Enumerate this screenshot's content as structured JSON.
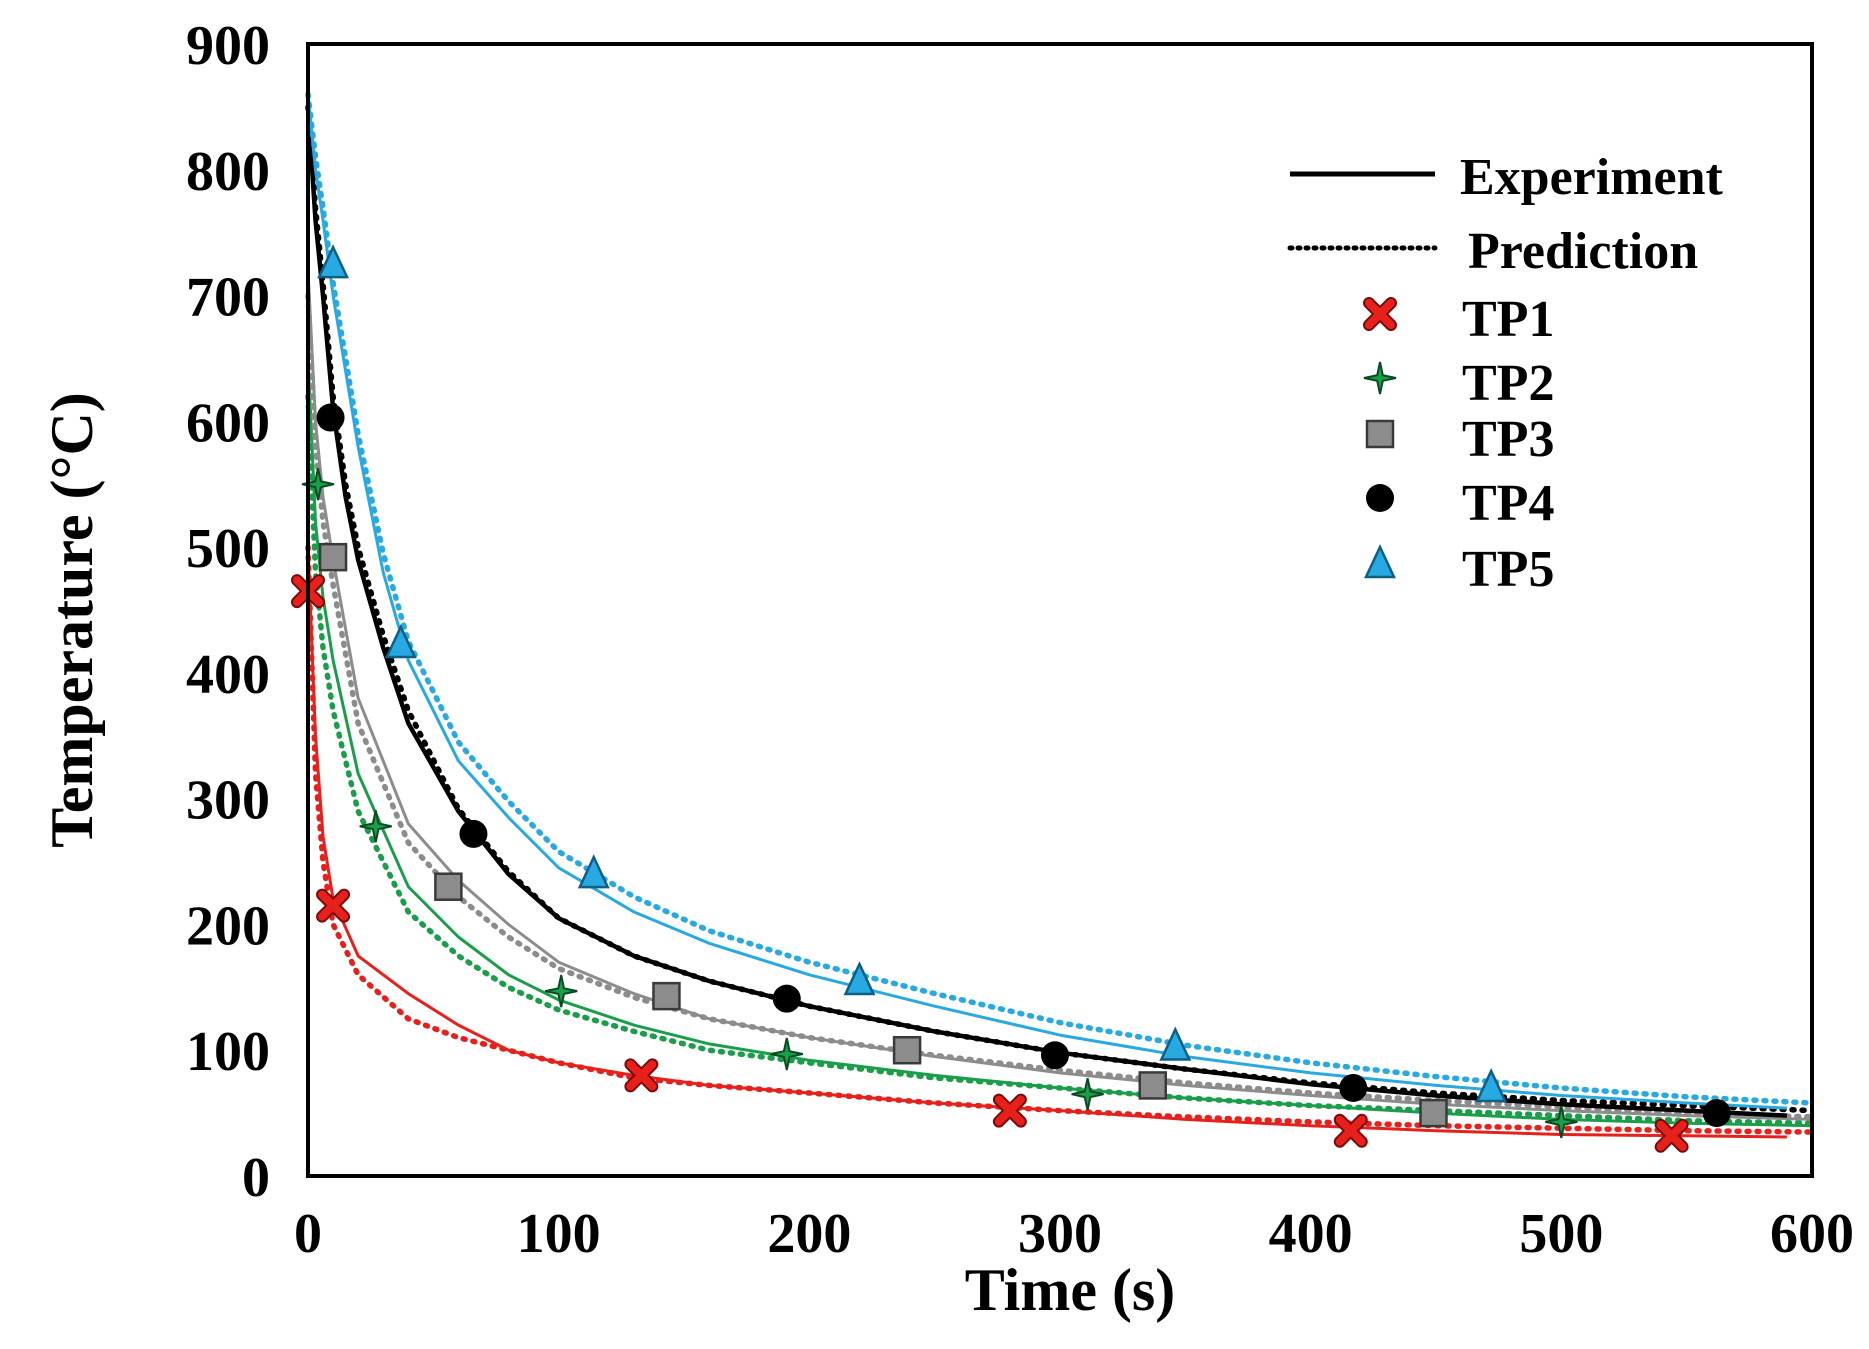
{
  "chart_data": {
    "type": "line",
    "title": "",
    "xlabel": "Time (s)",
    "ylabel": "Temperature (°C)",
    "xlim": [
      0,
      600
    ],
    "ylim": [
      0,
      900
    ],
    "xticks": [
      0,
      100,
      200,
      300,
      400,
      500,
      600
    ],
    "yticks": [
      0,
      100,
      200,
      300,
      400,
      500,
      600,
      700,
      800,
      900
    ],
    "xtick_labels": [
      "0",
      "100",
      "200",
      "300",
      "400",
      "500",
      "600"
    ],
    "ytick_labels": [
      "0",
      "100",
      "200",
      "300",
      "400",
      "500",
      "600",
      "700",
      "800",
      "900"
    ],
    "grid": false,
    "legend_position": "top-right",
    "legend": [
      {
        "label": "Experiment",
        "kind": "line",
        "style": "solid",
        "color": "#000000"
      },
      {
        "label": "Prediction",
        "kind": "line",
        "style": "dotted",
        "color": "#000000"
      },
      {
        "label": "TP1",
        "kind": "marker",
        "marker": "x",
        "color": "#e8201c"
      },
      {
        "label": "TP2",
        "kind": "marker",
        "marker": "star",
        "color": "#1a9e4a"
      },
      {
        "label": "TP3",
        "kind": "marker",
        "marker": "square",
        "color": "#8c8c8c"
      },
      {
        "label": "TP4",
        "kind": "marker",
        "marker": "circle",
        "color": "#000000"
      },
      {
        "label": "TP5",
        "kind": "marker",
        "marker": "triangle",
        "color": "#29a9e1"
      }
    ],
    "series": [
      {
        "name": "TP1",
        "color": "#e8201c",
        "marker": "x",
        "experiment": {
          "x": [
            0,
            3,
            6,
            10,
            20,
            40,
            60,
            80,
            100,
            130,
            160,
            200,
            250,
            300,
            350,
            400,
            450,
            500,
            550,
            590
          ],
          "y": [
            500,
            350,
            270,
            220,
            175,
            145,
            120,
            100,
            90,
            80,
            72,
            66,
            58,
            52,
            45,
            40,
            36,
            33,
            32,
            31
          ]
        },
        "prediction": {
          "x": [
            0,
            3,
            6,
            10,
            20,
            40,
            60,
            80,
            100,
            130,
            160,
            200,
            250,
            300,
            350,
            400,
            450,
            500,
            550,
            600
          ],
          "y": [
            500,
            320,
            250,
            200,
            160,
            125,
            110,
            100,
            90,
            78,
            72,
            66,
            58,
            52,
            47,
            43,
            40,
            38,
            36,
            35
          ]
        },
        "markers": {
          "x": [
            0,
            10,
            133,
            280,
            416,
            544
          ],
          "y": [
            465,
            215,
            80,
            52,
            36,
            32
          ]
        }
      },
      {
        "name": "TP2",
        "color": "#1a9e4a",
        "marker": "star",
        "experiment": {
          "x": [
            0,
            3,
            6,
            10,
            20,
            40,
            60,
            80,
            100,
            130,
            160,
            200,
            250,
            300,
            350,
            400,
            450,
            500,
            550,
            600
          ],
          "y": [
            650,
            520,
            460,
            410,
            320,
            230,
            190,
            160,
            140,
            120,
            105,
            92,
            80,
            70,
            62,
            56,
            50,
            45,
            42,
            40
          ]
        },
        "prediction": {
          "x": [
            0,
            3,
            6,
            10,
            20,
            40,
            60,
            80,
            100,
            130,
            160,
            200,
            250,
            300,
            350,
            400,
            450,
            500,
            550,
            600
          ],
          "y": [
            620,
            480,
            420,
            370,
            290,
            210,
            175,
            150,
            132,
            115,
            100,
            90,
            78,
            70,
            62,
            56,
            52,
            48,
            44,
            42
          ]
        },
        "markers": {
          "x": [
            4,
            27,
            101,
            191,
            311,
            500
          ],
          "y": [
            550,
            278,
            147,
            97,
            65,
            43
          ]
        }
      },
      {
        "name": "TP3",
        "color": "#8c8c8c",
        "marker": "square",
        "experiment": {
          "x": [
            0,
            3,
            6,
            10,
            20,
            40,
            60,
            80,
            100,
            130,
            160,
            200,
            250,
            300,
            350,
            400,
            450,
            500,
            550,
            600
          ],
          "y": [
            720,
            600,
            540,
            490,
            380,
            280,
            235,
            200,
            170,
            145,
            125,
            110,
            95,
            82,
            72,
            64,
            57,
            52,
            48,
            45
          ]
        },
        "prediction": {
          "x": [
            0,
            3,
            6,
            10,
            20,
            40,
            60,
            80,
            100,
            130,
            160,
            200,
            250,
            300,
            350,
            400,
            450,
            500,
            550,
            600
          ],
          "y": [
            700,
            580,
            520,
            470,
            360,
            265,
            222,
            190,
            165,
            142,
            125,
            110,
            96,
            84,
            74,
            66,
            60,
            55,
            50,
            47
          ]
        },
        "markers": {
          "x": [
            10,
            56,
            143,
            239,
            337,
            449
          ],
          "y": [
            492,
            230,
            143,
            100,
            72,
            50
          ]
        }
      },
      {
        "name": "TP4",
        "color": "#000000",
        "marker": "circle",
        "experiment": {
          "x": [
            0,
            3,
            6,
            10,
            15,
            20,
            30,
            40,
            60,
            80,
            100,
            130,
            160,
            200,
            250,
            300,
            350,
            400,
            450,
            500,
            550,
            590
          ],
          "y": [
            850,
            760,
            700,
            610,
            540,
            490,
            420,
            360,
            290,
            240,
            205,
            175,
            155,
            135,
            115,
            98,
            85,
            73,
            64,
            57,
            52,
            48
          ]
        },
        "prediction": {
          "x": [
            0,
            3,
            6,
            10,
            15,
            20,
            30,
            40,
            60,
            80,
            100,
            130,
            160,
            200,
            250,
            300,
            350,
            400,
            450,
            500,
            550,
            600
          ],
          "y": [
            850,
            770,
            710,
            620,
            550,
            500,
            430,
            370,
            292,
            242,
            205,
            175,
            155,
            135,
            115,
            98,
            85,
            74,
            66,
            60,
            56,
            52
          ]
        },
        "markers": {
          "x": [
            9,
            66,
            191,
            298,
            417,
            562
          ],
          "y": [
            603,
            272,
            141,
            96,
            70,
            50
          ]
        }
      },
      {
        "name": "TP5",
        "color": "#29a9e1",
        "marker": "triangle",
        "experiment": {
          "x": [
            0,
            3,
            6,
            10,
            15,
            20,
            30,
            40,
            60,
            80,
            100,
            130,
            160,
            200,
            250,
            300,
            350,
            400,
            450,
            500,
            550,
            590
          ],
          "y": [
            860,
            800,
            760,
            700,
            640,
            580,
            480,
            410,
            330,
            285,
            245,
            210,
            185,
            160,
            135,
            112,
            95,
            82,
            72,
            64,
            58,
            54
          ]
        },
        "prediction": {
          "x": [
            0,
            3,
            6,
            10,
            15,
            20,
            30,
            40,
            60,
            80,
            100,
            130,
            160,
            200,
            250,
            300,
            350,
            400,
            450,
            500,
            550,
            600
          ],
          "y": [
            860,
            810,
            770,
            710,
            650,
            590,
            495,
            425,
            345,
            298,
            258,
            222,
            195,
            170,
            145,
            122,
            104,
            90,
            79,
            70,
            63,
            58
          ]
        },
        "markers": {
          "x": [
            10,
            37,
            114,
            220,
            346,
            472
          ],
          "y": [
            725,
            423,
            240,
            155,
            103,
            70
          ]
        }
      }
    ]
  }
}
